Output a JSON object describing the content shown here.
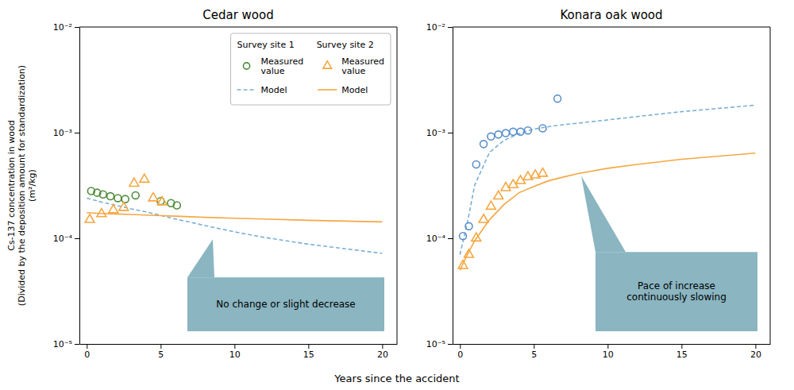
{
  "chart_data": [
    {
      "type": "line",
      "title": "Cedar wood",
      "y_label": "Cs-137 concentration in wood\n(Divided by the deposition amount for standardization)\n(m²/kg)",
      "x_label": "Years since the accident",
      "log": "y",
      "xlim": [
        -0.5,
        21
      ],
      "ylim": [
        1e-05,
        0.01
      ],
      "xticks": [
        0,
        5,
        10,
        15,
        20
      ],
      "yticks": [
        {
          "value": 1e-05,
          "label": "10⁻⁵"
        },
        {
          "value": 0.0001,
          "label": "10⁻⁴"
        },
        {
          "value": 0.001,
          "label": "10⁻³"
        },
        {
          "value": 0.01,
          "label": "10⁻²"
        }
      ],
      "grid": false,
      "legend": "upper right",
      "legend_title": "Survey site 1        Survey site 2",
      "annotations": [
        "No change or slight decrease"
      ],
      "series": [
        {
          "name": "Measured\nvalue",
          "type": "scatter",
          "marker": "circle",
          "color": "#4e8c3a",
          "x": [
            0.3,
            0.7,
            1.1,
            1.6,
            2.1,
            2.6,
            3.3,
            5.0,
            5.7,
            6.1
          ],
          "values": [
            0.00028,
            0.00027,
            0.00026,
            0.00025,
            0.00024,
            0.000235,
            0.000255,
            0.000225,
            0.000215,
            0.000205
          ]
        },
        {
          "name": "Model",
          "type": "line",
          "line_style": "dashed",
          "color": "#7ab0d4",
          "x": [
            0,
            1,
            2,
            3,
            4,
            5,
            6,
            7,
            8,
            10,
            12,
            15,
            20
          ],
          "values": [
            0.00024,
            0.00022,
            0.000205,
            0.00019,
            0.000178,
            0.000165,
            0.000152,
            0.000142,
            0.000132,
            0.000115,
            0.000102,
            8.8e-05,
            7.2e-05
          ]
        },
        {
          "name": "Measured\nvalue",
          "type": "scatter",
          "marker": "triangle",
          "color": "#f5a742",
          "x": [
            0.2,
            1.0,
            1.8,
            2.5,
            3.2,
            3.9,
            4.5,
            5.1
          ],
          "values": [
            0.00015,
            0.00017,
            0.000185,
            0.000195,
            0.00033,
            0.00036,
            0.00024,
            0.00022
          ]
        },
        {
          "name": "Model",
          "type": "line",
          "line_style": "solid",
          "color": "#f5a742",
          "x": [
            0,
            1,
            2,
            3,
            4,
            5,
            6,
            7,
            8,
            10,
            12,
            15,
            20
          ],
          "values": [
            0.000175,
            0.000172,
            0.00017,
            0.000168,
            0.000166,
            0.000164,
            0.000162,
            0.00016,
            0.000158,
            0.000155,
            0.000152,
            0.000148,
            0.000143
          ]
        }
      ]
    },
    {
      "type": "line",
      "title": "Konara oak wood",
      "log": "y",
      "xlim": [
        -0.5,
        21
      ],
      "ylim": [
        1e-05,
        0.01
      ],
      "xticks": [
        0,
        5,
        10,
        15,
        20
      ],
      "yticks": [
        {
          "value": 1e-05,
          "label": "10⁻⁵"
        },
        {
          "value": 0.0001,
          "label": "10⁻⁴"
        },
        {
          "value": 0.001,
          "label": "10⁻³"
        },
        {
          "value": 0.01,
          "label": "10⁻²"
        }
      ],
      "grid": false,
      "annotations": [
        "Pace of increase\ncontinuously slowing"
      ],
      "series": [
        {
          "type": "scatter",
          "marker": "circle",
          "color": "#5b8fcc",
          "x": [
            0.2,
            0.6,
            1.1,
            1.6,
            2.1,
            2.6,
            3.1,
            3.6,
            4.1,
            4.6,
            5.6,
            6.6
          ],
          "values": [
            0.000105,
            0.00013,
            0.0005,
            0.00078,
            0.00092,
            0.00096,
            0.00099,
            0.00102,
            0.00102,
            0.00105,
            0.0011,
            0.0021
          ]
        },
        {
          "type": "line",
          "line_style": "dashed",
          "color": "#7ab0d4",
          "x": [
            0,
            0.5,
            1,
            2,
            3,
            4,
            5,
            6,
            7,
            8,
            10,
            12,
            15,
            20
          ],
          "values": [
            7e-05,
            0.00014,
            0.00032,
            0.00065,
            0.00085,
            0.00098,
            0.00108,
            0.00114,
            0.00119,
            0.00123,
            0.00132,
            0.00142,
            0.00158,
            0.00182
          ]
        },
        {
          "type": "scatter",
          "marker": "triangle",
          "color": "#f5a742",
          "x": [
            0.2,
            0.6,
            1.1,
            1.6,
            2.1,
            2.6,
            3.1,
            3.6,
            4.1,
            4.6,
            5.1,
            5.6
          ],
          "values": [
            5.5e-05,
            7e-05,
            0.0001,
            0.00015,
            0.0002,
            0.00025,
            0.0003,
            0.00032,
            0.00035,
            0.00038,
            0.000395,
            0.00041
          ]
        },
        {
          "type": "line",
          "line_style": "solid",
          "color": "#f5a742",
          "x": [
            0,
            0.5,
            1,
            2,
            3,
            4,
            5,
            6,
            7,
            8,
            10,
            12,
            15,
            20
          ],
          "values": [
            5e-05,
            7e-05,
            9.5e-05,
            0.00015,
            0.00021,
            0.00027,
            0.00031,
            0.00035,
            0.00038,
            0.00041,
            0.00046,
            0.0005,
            0.00056,
            0.00064
          ]
        }
      ]
    }
  ]
}
